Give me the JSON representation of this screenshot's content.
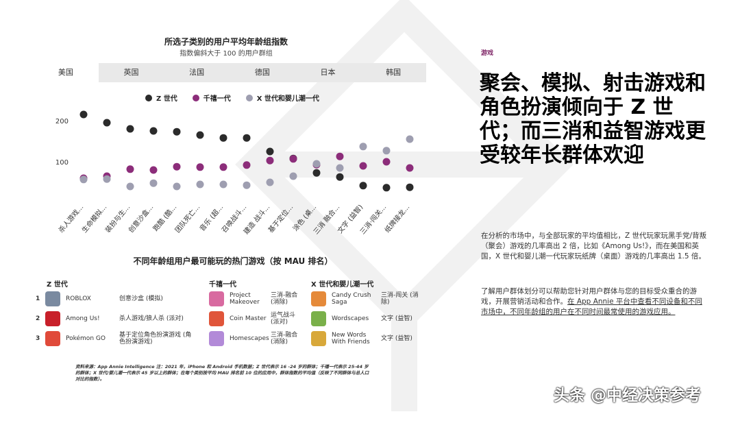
{
  "chart_data": {
    "type": "scatter",
    "title": "所选子类别的用户平均年龄组指数",
    "subtitle": "指数偏斜大于 100 的用户群组",
    "categories": [
      "杀人游戏...",
      "生命模拟...",
      "装扮与生...",
      "创意沙盒...",
      "跑酷 (酷...",
      "团队死亡...",
      "音乐 (超...",
      "召唤战斗...",
      "建造 战斗...",
      "基于定位...",
      "涂色 (桌...",
      "三消 融合...",
      "文字 (益智)",
      "三消·闯关...",
      "纸牌接龙..."
    ],
    "series": [
      {
        "name": "Z 世代",
        "color": "#2b2b2b",
        "values": [
          215,
          195,
          180,
          175,
          173,
          165,
          158,
          158,
          125,
          108,
          73,
          63,
          42,
          37,
          38
        ]
      },
      {
        "name": "千禧一代",
        "color": "#8c2d7a",
        "values": [
          60,
          65,
          82,
          80,
          88,
          87,
          87,
          92,
          103,
          107,
          93,
          113,
          90,
          100,
          85
        ]
      },
      {
        "name": "X 世代和婴儿潮一代",
        "color": "#9e9eb0",
        "values": [
          57,
          58,
          40,
          48,
          40,
          45,
          45,
          43,
          50,
          65,
          95,
          85,
          137,
          127,
          155
        ]
      }
    ],
    "yticks": [
      100,
      200
    ],
    "ylim": [
      0,
      240
    ]
  },
  "tabs": [
    {
      "label": "美国",
      "active": true
    },
    {
      "label": "英国",
      "active": false
    },
    {
      "label": "法国",
      "active": false
    },
    {
      "label": "德国",
      "active": false
    },
    {
      "label": "日本",
      "active": false
    },
    {
      "label": "韩国",
      "active": false
    }
  ],
  "games": {
    "title": "不同年龄组用户最可能玩的热门游戏（按 MAU 排名）",
    "columns": [
      {
        "header": "Z 世代",
        "rows": [
          {
            "rank": "1",
            "name": "ROBLOX",
            "category": "创意沙盒 (模拟)",
            "icon_color": "#7a8aa0"
          },
          {
            "rank": "2",
            "name": "Among Us!",
            "category": "杀人游戏/狼人杀 (派对)",
            "icon_color": "#c8202a"
          },
          {
            "rank": "3",
            "name": "Pokémon GO",
            "category": "基于定位角色扮演游戏 (角色扮演游戏)",
            "icon_color": "#e04a3a"
          }
        ]
      },
      {
        "header": "千禧一代",
        "rows": [
          {
            "name": "Project Makeover",
            "category": "三消-融合 (消除)",
            "icon_color": "#d86aa0"
          },
          {
            "name": "Coin Master",
            "category": "运气战斗 (派对)",
            "icon_color": "#e0553a"
          },
          {
            "name": "Homescapes",
            "category": "三消-融合 (消除)",
            "icon_color": "#b28ad8"
          }
        ]
      },
      {
        "header": "X 世代和婴儿潮一代",
        "rows": [
          {
            "name": "Candy Crush Saga",
            "category": "三消-闯关 (消除)",
            "icon_color": "#e58a3a"
          },
          {
            "name": "Wordscapes",
            "category": "文字 (益智)",
            "icon_color": "#7ab04a"
          },
          {
            "name": "New Words With Friends",
            "category": "文字 (益智)",
            "icon_color": "#d8a83a"
          }
        ]
      }
    ]
  },
  "source_note": "资料来源：App Annie Intelligence 注：2021 年，iPhone 和 Android 手机数据；Z 世代表示 16 -24 岁的群体；千禧一代表示 25-44 岁的群体；X 世代/婴儿潮一代表示 45 岁以上的群体；在每个类别按平均 MAU 排名前 10 位的应用中，群体指数的平均值（反映了不同群体与总人口对比的指数）。",
  "right": {
    "tag": "游戏",
    "headline": "聚会、模拟、射击游戏和角色扮演倾向于 Z 世代；而三消和益智游戏更受较年长群体欢迎",
    "para1": "在分析的市场中，与全部玩家的平均值相比，Z 世代玩家玩黑手党/背叛（聚会）游戏的几率高出 2 倍，比如《Among Us!》，而在美国和英国，X 世代和婴儿潮一代玩家玩纸牌（桌面）游戏的几率高出 1.5 倍。",
    "para2_plain": "了解用户群体划分可以帮助您针对用户群体与您的目标受众重合的游戏，开展营销活动和合作。",
    "para2_link": "在 App Annie 平台中查看不同设备和不同市场中，不同年龄组的用户在不同时间最常使用的游戏应用。"
  },
  "watermark": "头条 @中经决策参考"
}
